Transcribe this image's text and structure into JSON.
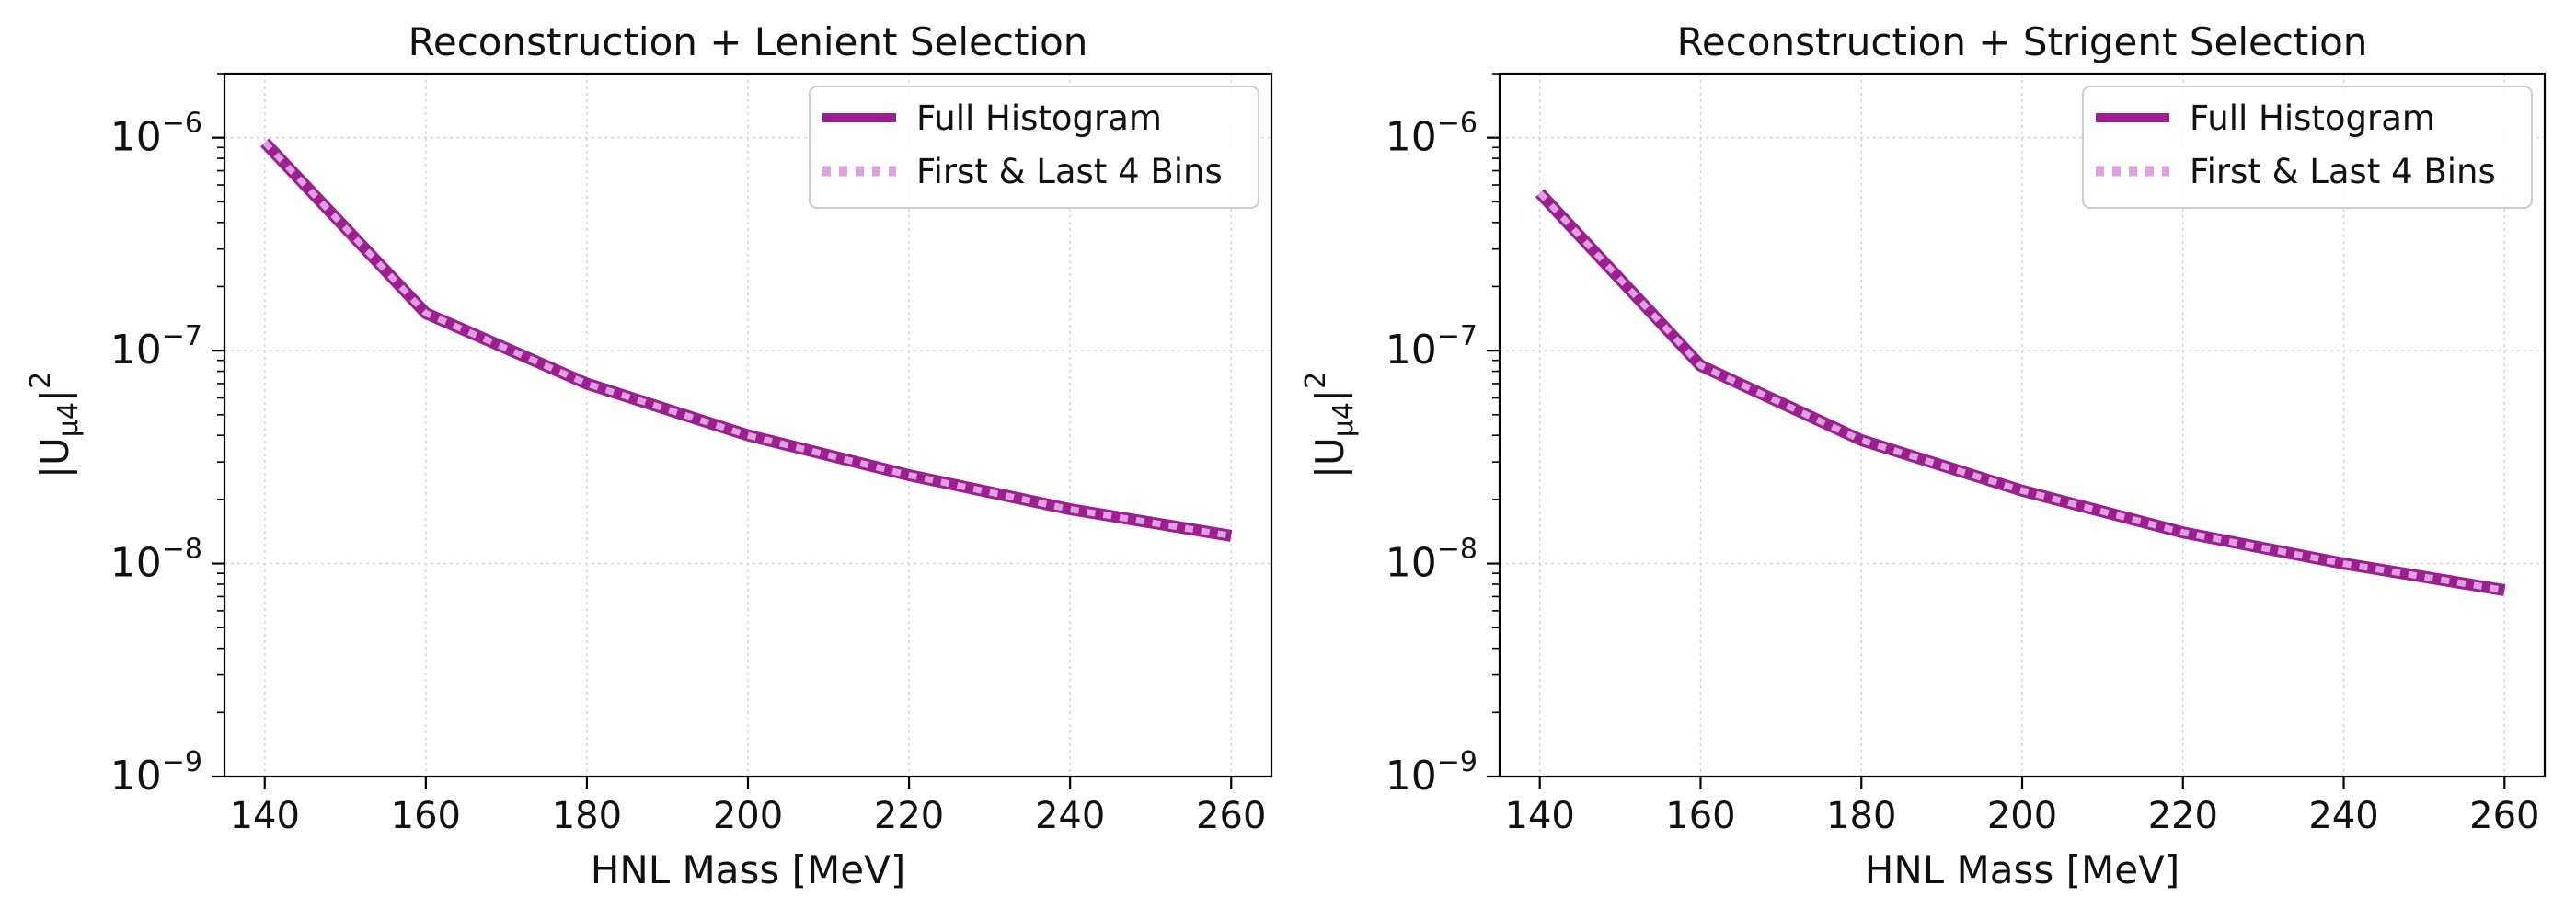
{
  "chart_data": [
    {
      "type": "line",
      "title": "Reconstruction + Lenient Selection",
      "xlabel": "HNL Mass [MeV]",
      "ylabel": "|U_μ4|²",
      "xlim": [
        135,
        265
      ],
      "ylim": [
        1e-09,
        2e-06
      ],
      "yscale": "log",
      "grid": true,
      "legend_position": "top-right",
      "x_ticks": [
        140,
        160,
        180,
        200,
        220,
        240,
        260
      ],
      "y_ticks": [
        {
          "value": 1e-09,
          "mantissa": "10",
          "exp": "−9"
        },
        {
          "value": 1e-08,
          "mantissa": "10",
          "exp": "−8"
        },
        {
          "value": 1e-07,
          "mantissa": "10",
          "exp": "−7"
        },
        {
          "value": 1e-06,
          "mantissa": "10",
          "exp": "−6"
        }
      ],
      "x": [
        140,
        160,
        180,
        200,
        220,
        240,
        260
      ],
      "series": [
        {
          "name": "Full Histogram",
          "values": [
            9.5e-07,
            1.5e-07,
            7e-08,
            4e-08,
            2.6e-08,
            1.8e-08,
            1.35e-08
          ],
          "color": "#9b1f8f",
          "style": "solid"
        },
        {
          "name": "First & Last 4 Bins",
          "values": [
            9.5e-07,
            1.5e-07,
            7e-08,
            4e-08,
            2.6e-08,
            1.8e-08,
            1.35e-08
          ],
          "color": "#dfa0df",
          "style": "dotted"
        }
      ]
    },
    {
      "type": "line",
      "title": "Reconstruction + Strigent Selection",
      "xlabel": "HNL Mass [MeV]",
      "ylabel": "|U_μ4|²",
      "xlim": [
        135,
        265
      ],
      "ylim": [
        1e-09,
        2e-06
      ],
      "yscale": "log",
      "grid": true,
      "legend_position": "top-right",
      "x_ticks": [
        140,
        160,
        180,
        200,
        220,
        240,
        260
      ],
      "y_ticks": [
        {
          "value": 1e-09,
          "mantissa": "10",
          "exp": "−9"
        },
        {
          "value": 1e-08,
          "mantissa": "10",
          "exp": "−8"
        },
        {
          "value": 1e-07,
          "mantissa": "10",
          "exp": "−7"
        },
        {
          "value": 1e-06,
          "mantissa": "10",
          "exp": "−6"
        }
      ],
      "x": [
        140,
        160,
        180,
        200,
        220,
        240,
        260
      ],
      "series": [
        {
          "name": "Full Histogram",
          "values": [
            5.5e-07,
            8.5e-08,
            3.8e-08,
            2.2e-08,
            1.4e-08,
            1e-08,
            7.5e-09
          ],
          "color": "#9b1f8f",
          "style": "solid"
        },
        {
          "name": "First & Last 4 Bins",
          "values": [
            5.5e-07,
            8.5e-08,
            3.8e-08,
            2.2e-08,
            1.4e-08,
            1e-08,
            7.5e-09
          ],
          "color": "#dfa0df",
          "style": "dotted"
        }
      ]
    }
  ]
}
